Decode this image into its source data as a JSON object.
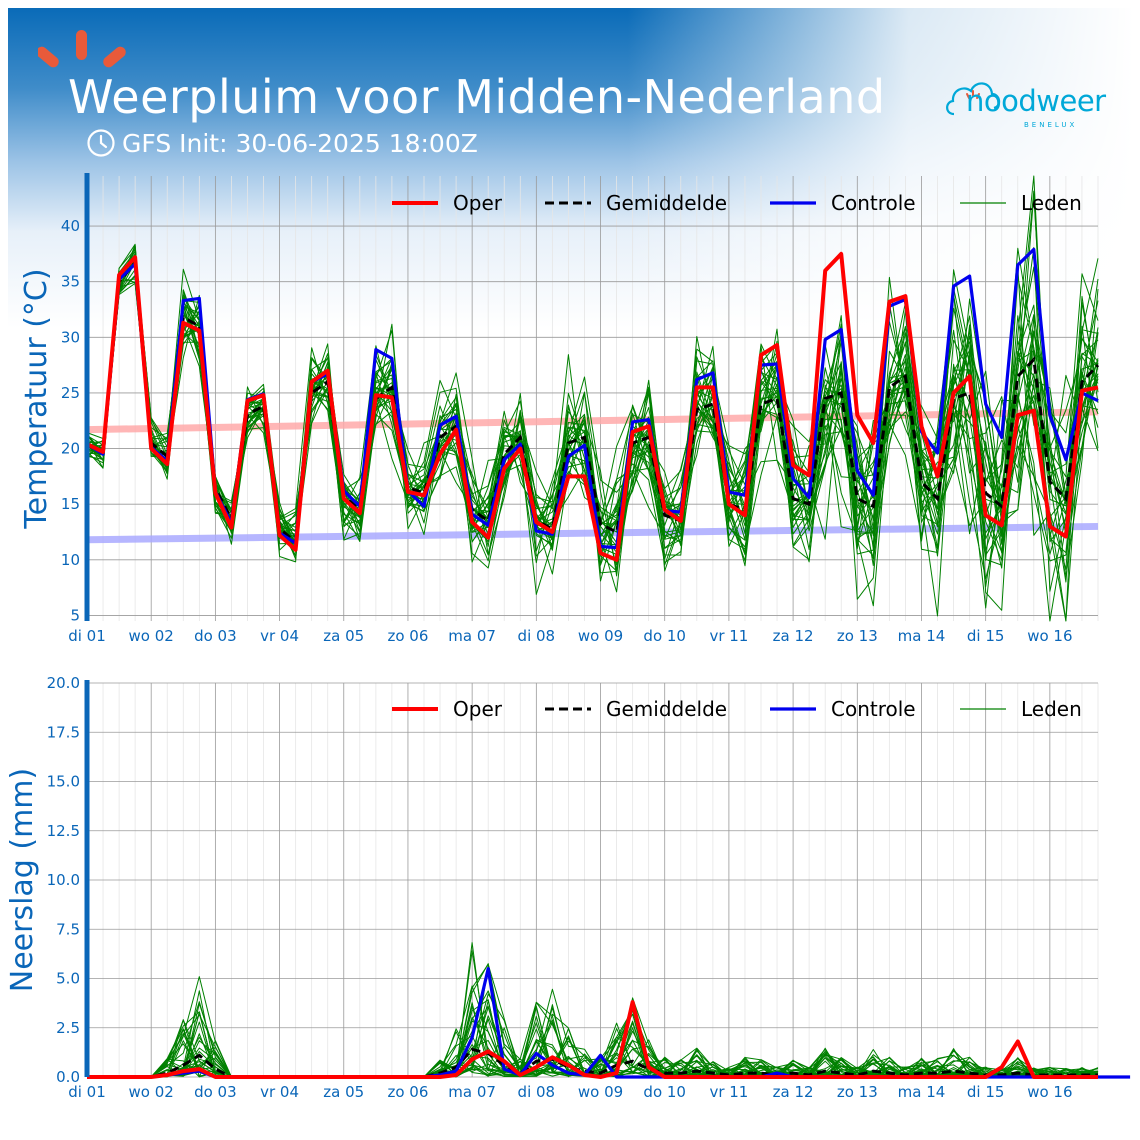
{
  "header": {
    "title": "Weerpluim voor Midden-Nederland",
    "subtitle": "GFS Init: 30-06-2025 18:00Z",
    "logo_text": "noodweer",
    "logo_sub": "BENELUX"
  },
  "colors": {
    "oper": "#ff0000",
    "mean": "#000000",
    "control": "#0000ee",
    "members": "#008000",
    "climate_max": "#ffaaaa",
    "climate_min": "#aaaaff",
    "axis": "#0a66b8",
    "title_band": "#0a6bb8"
  },
  "chart_data": [
    {
      "type": "line",
      "ylabel": "Temperatuur (°C)",
      "xlabel": "",
      "ylim": [
        4.5,
        44.5
      ],
      "yticks": [
        "5",
        "10",
        "15",
        "20",
        "25",
        "30",
        "35",
        "40"
      ],
      "xlim": [
        0,
        15.75
      ],
      "xticks": [
        "di 01",
        "wo 02",
        "do 03",
        "vr 04",
        "za 05",
        "zo 06",
        "ma 07",
        "di 08",
        "wo 09",
        "do 10",
        "vr 11",
        "za 12",
        "zo 13",
        "ma 14",
        "di 15",
        "wo 16"
      ],
      "legend": [
        "Oper",
        "Gemiddelde",
        "Controle",
        "Leden"
      ],
      "legend_position": "top-right",
      "grid": true,
      "time_step_days": 0.25,
      "climate_max": [
        21.7,
        23.3
      ],
      "climate_min": [
        11.8,
        13.0
      ],
      "series": [
        {
          "name": "Oper",
          "values": [
            20.4,
            19.7,
            35.6,
            37.2,
            20.0,
            18.6,
            31.3,
            30.6,
            16.0,
            12.9,
            24.3,
            24.8,
            12.2,
            10.9,
            26.0,
            27.0,
            15.5,
            14.2,
            24.8,
            24.6,
            16.1,
            15.8,
            19.5,
            21.7,
            13.4,
            12.0,
            18.2,
            20.0,
            13.4,
            12.5,
            17.5,
            17.5,
            10.6,
            10.0,
            21.5,
            22.0,
            14.5,
            13.5,
            25.5,
            25.5,
            15.0,
            14.0,
            28.4,
            29.3,
            18.5,
            17.6,
            36.0,
            37.5,
            23.0,
            20.5,
            33.2,
            33.7,
            22.0,
            17.5,
            25.0,
            26.5,
            14.0,
            13.1,
            23.0,
            23.4,
            13.0,
            12.1,
            25.2,
            25.5
          ]
        },
        {
          "name": "Gemiddelde",
          "values": [
            20.3,
            19.7,
            35.0,
            36.7,
            20.5,
            19.3,
            31.8,
            31.0,
            16.4,
            13.7,
            23.1,
            23.8,
            12.8,
            11.6,
            25.0,
            26.0,
            15.7,
            14.5,
            24.5,
            25.5,
            16.5,
            16.0,
            21.0,
            22.0,
            14.5,
            13.5,
            19.5,
            21.0,
            13.5,
            12.8,
            20.5,
            21.0,
            13.2,
            12.5,
            20.5,
            21.0,
            14.0,
            13.5,
            23.5,
            24.0,
            15.0,
            14.5,
            24.0,
            24.5,
            15.5,
            15.0,
            24.5,
            25.0,
            15.5,
            14.8,
            25.5,
            26.5,
            17.0,
            15.5,
            24.5,
            25.0,
            16.0,
            14.8,
            26.5,
            28.0,
            17.0,
            15.5,
            26.0,
            27.5
          ]
        },
        {
          "name": "Controle",
          "values": [
            20.4,
            19.5,
            35.2,
            36.6,
            20.1,
            18.9,
            33.3,
            33.5,
            16.1,
            13.3,
            24.4,
            24.9,
            12.4,
            11.5,
            26.0,
            26.7,
            16.2,
            14.8,
            28.9,
            28.1,
            16.2,
            14.8,
            22.1,
            22.9,
            14.1,
            13.1,
            19.0,
            20.4,
            12.6,
            12.3,
            19.3,
            20.3,
            11.2,
            11.1,
            22.4,
            22.6,
            14.4,
            14.3,
            26.2,
            26.8,
            16.1,
            15.8,
            27.5,
            27.6,
            17.3,
            15.6,
            29.8,
            30.7,
            18.0,
            15.8,
            32.8,
            33.4,
            21.5,
            19.6,
            34.6,
            35.5,
            24.0,
            21.0,
            36.5,
            37.9,
            23.0,
            19.0,
            25.0,
            24.3
          ]
        }
      ]
    },
    {
      "type": "line",
      "ylabel": "Neerslag (mm)",
      "xlabel": "",
      "ylim": [
        0,
        20
      ],
      "yticks": [
        "0.0",
        "2.5",
        "5.0",
        "7.5",
        "10.0",
        "12.5",
        "15.0",
        "17.5",
        "20.0"
      ],
      "xlim": [
        0,
        15.75
      ],
      "xticks": [
        "di 01",
        "wo 02",
        "do 03",
        "vr 04",
        "za 05",
        "zo 06",
        "ma 07",
        "di 08",
        "wo 09",
        "do 10",
        "vr 11",
        "za 12",
        "zo 13",
        "ma 14",
        "di 15",
        "wo 16"
      ],
      "legend": [
        "Oper",
        "Gemiddelde",
        "Controle",
        "Leden"
      ],
      "legend_position": "top-right",
      "grid": true,
      "time_step_days": 0.25,
      "series": [
        {
          "name": "Oper",
          "values": [
            0,
            0,
            0,
            0,
            0,
            0.1,
            0.3,
            0.4,
            0,
            0,
            0,
            0,
            0,
            0,
            0,
            0,
            0,
            0,
            0,
            0,
            0,
            0,
            0,
            0.1,
            0.9,
            1.3,
            0.8,
            0.1,
            0.5,
            1.0,
            0.6,
            0.1,
            0,
            0.2,
            3.8,
            0.5,
            0,
            0,
            0,
            0,
            0,
            0,
            0,
            0,
            0,
            0,
            0,
            0,
            0,
            0,
            0,
            0,
            0,
            0,
            0,
            0,
            0,
            0.5,
            1.8,
            0,
            0,
            0,
            0,
            0
          ]
        },
        {
          "name": "Gemiddelde",
          "values": [
            0,
            0,
            0,
            0,
            0,
            0.2,
            0.6,
            1.1,
            0.4,
            0,
            0,
            0,
            0,
            0,
            0,
            0,
            0,
            0,
            0,
            0,
            0,
            0,
            0.2,
            0.5,
            1.4,
            1.2,
            0.6,
            0.2,
            0.8,
            0.9,
            0.5,
            0.3,
            0.2,
            0.6,
            0.8,
            0.4,
            0.2,
            0.2,
            0.3,
            0.2,
            0.1,
            0.2,
            0.2,
            0.1,
            0.2,
            0.1,
            0.3,
            0.2,
            0.1,
            0.3,
            0.2,
            0.1,
            0.2,
            0.2,
            0.3,
            0.2,
            0.1,
            0.1,
            0.2,
            0.1,
            0.1,
            0.1,
            0.1,
            0.1
          ]
        },
        {
          "name": "Controle",
          "values": [
            0,
            0,
            0,
            0,
            0,
            0.1,
            0.2,
            0.3,
            0,
            0,
            0,
            0,
            0,
            0,
            0,
            0,
            0,
            0,
            0,
            0,
            0,
            0,
            0.1,
            0.3,
            2.0,
            5.5,
            0.4,
            0.1,
            1.2,
            0.6,
            0.2,
            0.1,
            1.1,
            0,
            0,
            0,
            0,
            0,
            0,
            0,
            0,
            0,
            0,
            0.2,
            0,
            0,
            0,
            0,
            0,
            0,
            0,
            0,
            0,
            0,
            0,
            0,
            0,
            0,
            0,
            0,
            0,
            0,
            0,
            0,
            0,
            0
          ]
        }
      ]
    }
  ]
}
